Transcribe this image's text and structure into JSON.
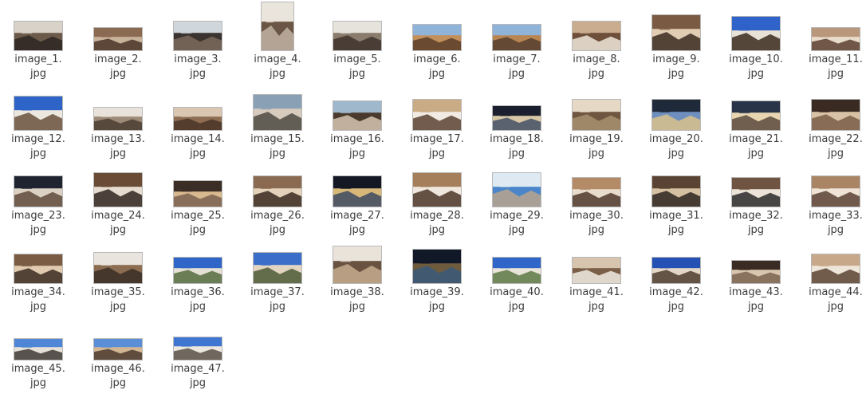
{
  "files": [
    {
      "line1": "image_1.",
      "line2": "jpg",
      "icon": "image-file-icon",
      "colors": [
        "#d8d2c8",
        "#6b5a4a",
        "#2d2622"
      ]
    },
    {
      "line1": "image_2.",
      "line2": "jpg",
      "icon": "image-file-icon",
      "colors": [
        "#8b6a52",
        "#c9b29a",
        "#4a3428"
      ]
    },
    {
      "line1": "image_3.",
      "line2": "jpg",
      "icon": "image-file-icon",
      "colors": [
        "#cfd6dc",
        "#3a3330",
        "#7b6b5c"
      ]
    },
    {
      "line1": "image_4.",
      "line2": "jpg",
      "icon": "image-file-icon",
      "colors": [
        "#e9e4dc",
        "#6b5544",
        "#bfb3a3"
      ]
    },
    {
      "line1": "image_5.",
      "line2": "jpg",
      "icon": "image-file-icon",
      "colors": [
        "#e6e2dc",
        "#8a7c6c",
        "#3d332c"
      ]
    },
    {
      "line1": "image_6.",
      "line2": "jpg",
      "icon": "image-file-icon",
      "colors": [
        "#8fb3d9",
        "#c38f5a",
        "#5a3f2c"
      ]
    },
    {
      "line1": "image_7.",
      "line2": "jpg",
      "icon": "image-file-icon",
      "colors": [
        "#8fb3d9",
        "#b98552",
        "#55402f"
      ]
    },
    {
      "line1": "image_8.",
      "line2": "jpg",
      "icon": "image-file-icon",
      "colors": [
        "#c9ad8e",
        "#6d4f3a",
        "#f0e6da"
      ]
    },
    {
      "line1": "image_9.",
      "line2": "jpg",
      "icon": "image-file-icon",
      "colors": [
        "#7a5a43",
        "#e0cdb4",
        "#3a2a20"
      ]
    },
    {
      "line1": "image_10.",
      "line2": "jpg",
      "icon": "image-file-icon",
      "colors": [
        "#2f63c9",
        "#e7e1d6",
        "#3b2a1f"
      ]
    },
    {
      "line1": "image_11.",
      "line2": "jpg",
      "icon": "image-file-icon",
      "colors": [
        "#b8977a",
        "#e9dccb",
        "#5a4030"
      ]
    },
    {
      "line1": "image_12.",
      "line2": "jpg",
      "icon": "image-file-icon",
      "colors": [
        "#2e64c8",
        "#ece8e0",
        "#6a513d"
      ]
    },
    {
      "line1": "image_13.",
      "line2": "jpg",
      "icon": "image-file-icon",
      "colors": [
        "#e8e2da",
        "#9e8b77",
        "#4b3d33"
      ]
    },
    {
      "line1": "image_14.",
      "line2": "jpg",
      "icon": "image-file-icon",
      "colors": [
        "#d9c7b2",
        "#8e6d52",
        "#4a3527"
      ]
    },
    {
      "line1": "image_15.",
      "line2": "jpg",
      "icon": "image-file-icon",
      "colors": [
        "#8aa0b5",
        "#d7cbbd",
        "#4e4a43"
      ]
    },
    {
      "line1": "image_16.",
      "line2": "jpg",
      "icon": "image-file-icon",
      "colors": [
        "#9fb8cc",
        "#4a3a2e",
        "#d5c5b0"
      ]
    },
    {
      "line1": "image_17.",
      "line2": "jpg",
      "icon": "image-file-icon",
      "colors": [
        "#c9ab85",
        "#f1ebe3",
        "#5c4332"
      ]
    },
    {
      "line1": "image_18.",
      "line2": "jpg",
      "icon": "image-file-icon",
      "colors": [
        "#1c1f2e",
        "#d8c8a6",
        "#445066"
      ]
    },
    {
      "line1": "image_19.",
      "line2": "jpg",
      "icon": "image-file-icon",
      "colors": [
        "#e5d9c6",
        "#6f5640",
        "#a8916f"
      ]
    },
    {
      "line1": "image_20.",
      "line2": "jpg",
      "icon": "image-file-icon",
      "colors": [
        "#1e2a3a",
        "#6f8fbf",
        "#d9c28c"
      ]
    },
    {
      "line1": "image_21.",
      "line2": "jpg",
      "icon": "image-file-icon",
      "colors": [
        "#2a3448",
        "#e8d6b2",
        "#5b4a3c"
      ]
    },
    {
      "line1": "image_22.",
      "line2": "jpg",
      "icon": "image-file-icon",
      "colors": [
        "#3a2b22",
        "#d8c2a6",
        "#7a5d47"
      ]
    },
    {
      "line1": "image_23.",
      "line2": "jpg",
      "icon": "image-file-icon",
      "colors": [
        "#1f2530",
        "#dcd2c4",
        "#5f4b3b"
      ]
    },
    {
      "line1": "image_24.",
      "line2": "jpg",
      "icon": "image-file-icon",
      "colors": [
        "#6a4b36",
        "#e6dccf",
        "#2f2520"
      ]
    },
    {
      "line1": "image_25.",
      "line2": "jpg",
      "icon": "image-file-icon",
      "colors": [
        "#3a2e27",
        "#d9b98f",
        "#7a6250"
      ]
    },
    {
      "line1": "image_26.",
      "line2": "jpg",
      "icon": "image-file-icon",
      "colors": [
        "#8a6a50",
        "#e4d2bb",
        "#3a2a20"
      ]
    },
    {
      "line1": "image_27.",
      "line2": "jpg",
      "icon": "image-file-icon",
      "colors": [
        "#141824",
        "#d8b879",
        "#3e4a62"
      ]
    },
    {
      "line1": "image_28.",
      "line2": "jpg",
      "icon": "image-file-icon",
      "colors": [
        "#a57f5c",
        "#f0e8de",
        "#4b3628"
      ]
    },
    {
      "line1": "image_29.",
      "line2": "jpg",
      "icon": "image-file-icon",
      "colors": [
        "#dfe9f2",
        "#4a86c9",
        "#b9a58d"
      ]
    },
    {
      "line1": "image_30.",
      "line2": "jpg",
      "icon": "image-file-icon",
      "colors": [
        "#b38b66",
        "#e8dccd",
        "#4e3a2c"
      ]
    },
    {
      "line1": "image_31.",
      "line2": "jpg",
      "icon": "image-file-icon",
      "colors": [
        "#5a4332",
        "#d6c0a2",
        "#2e2520"
      ]
    },
    {
      "line1": "image_32.",
      "line2": "jpg",
      "icon": "image-file-icon",
      "colors": [
        "#6f5441",
        "#ece4d8",
        "#2c2a2a"
      ]
    },
    {
      "line1": "image_33.",
      "line2": "jpg",
      "icon": "image-file-icon",
      "colors": [
        "#a98565",
        "#eee3d4",
        "#5a4232"
      ]
    },
    {
      "line1": "image_34.",
      "line2": "jpg",
      "icon": "image-file-icon",
      "colors": [
        "#7a5c45",
        "#e0cbb0",
        "#3a2c22"
      ]
    },
    {
      "line1": "image_35.",
      "line2": "jpg",
      "icon": "image-file-icon",
      "colors": [
        "#e9e4de",
        "#8c6d52",
        "#3a2e26"
      ]
    },
    {
      "line1": "image_36.",
      "line2": "jpg",
      "icon": "image-file-icon",
      "colors": [
        "#2f66c8",
        "#e5e0d6",
        "#566b3e"
      ]
    },
    {
      "line1": "image_37.",
      "line2": "jpg",
      "icon": "image-file-icon",
      "colors": [
        "#3a6ec9",
        "#e2d6c2",
        "#4e5b36"
      ]
    },
    {
      "line1": "image_38.",
      "line2": "jpg",
      "icon": "image-file-icon",
      "colors": [
        "#e9e3da",
        "#6a5240",
        "#c6ad8f"
      ]
    },
    {
      "line1": "image_39.",
      "line2": "jpg",
      "icon": "image-file-icon",
      "colors": [
        "#111827",
        "#6e5b3e",
        "#3b5a7a"
      ]
    },
    {
      "line1": "image_40.",
      "line2": "jpg",
      "icon": "image-file-icon",
      "colors": [
        "#2f66c8",
        "#e9e4da",
        "#5d7a44"
      ]
    },
    {
      "line1": "image_41.",
      "line2": "jpg",
      "icon": "image-file-icon",
      "colors": [
        "#d6c4ae",
        "#7a5e47",
        "#f2ece4"
      ]
    },
    {
      "line1": "image_42.",
      "line2": "jpg",
      "icon": "image-file-icon",
      "colors": [
        "#2551b5",
        "#e3d8c8",
        "#4d3d2f"
      ]
    },
    {
      "line1": "image_43.",
      "line2": "jpg",
      "icon": "image-file-icon",
      "colors": [
        "#3a2c24",
        "#d8c6ae",
        "#7d6450"
      ]
    },
    {
      "line1": "image_44.",
      "line2": "jpg",
      "icon": "image-file-icon",
      "colors": [
        "#c7a888",
        "#efe6da",
        "#5b4333"
      ]
    },
    {
      "line1": "image_45.",
      "line2": "jpg",
      "icon": "image-file-icon",
      "colors": [
        "#4f86d6",
        "#e6e1d8",
        "#3f3a35"
      ]
    },
    {
      "line1": "image_46.",
      "line2": "jpg",
      "icon": "image-file-icon",
      "colors": [
        "#5a8fd8",
        "#d2b694",
        "#4b3a2e"
      ]
    },
    {
      "line1": "image_47.",
      "line2": "jpg",
      "icon": "image-file-icon",
      "colors": [
        "#3f76d2",
        "#ece7df",
        "#5a5048"
      ]
    }
  ]
}
